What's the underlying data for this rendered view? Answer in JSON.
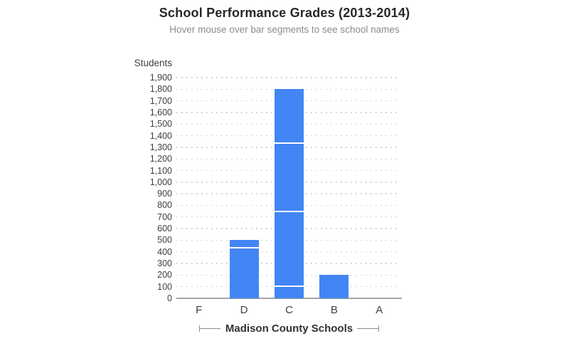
{
  "chart_data": {
    "type": "bar",
    "stacked": true,
    "title": "School Performance Grades (2013-2014)",
    "subtitle": "Hover mouse over bar segments to see school names",
    "ylabel": "Students",
    "xlabel": "Madison County Schools",
    "categories": [
      "F",
      "D",
      "C",
      "B",
      "A"
    ],
    "stacks": [
      {
        "category": "F",
        "segments": [],
        "total": 0
      },
      {
        "category": "D",
        "segments": [
          430,
          70
        ],
        "total": 500
      },
      {
        "category": "C",
        "segments": [
          100,
          640,
          590,
          470
        ],
        "total": 1800
      },
      {
        "category": "B",
        "segments": [
          200
        ],
        "total": 200
      },
      {
        "category": "A",
        "segments": [],
        "total": 0
      }
    ],
    "ylim": [
      0,
      1900
    ],
    "ytick_step": 100,
    "ytick_values": [
      1900,
      1800,
      1700,
      1600,
      1500,
      1400,
      1300,
      1200,
      1100,
      1000,
      900,
      800,
      700,
      600,
      500,
      400,
      300,
      200,
      100,
      0
    ],
    "ytick_labels": [
      "1,900",
      "1,800",
      "1,700",
      "1,600",
      "1,500",
      "1,400",
      "1,300",
      "1,200",
      "1,100",
      "1,000",
      "900",
      "800",
      "700",
      "600",
      "500",
      "400",
      "300",
      "200",
      "100",
      "0"
    ],
    "grid": "dotted-horizontal",
    "legend": "none"
  },
  "colors": {
    "bar": "#4285F4",
    "grid": "#c7c7c7",
    "axis": "#a6a6a6",
    "title": "#282828",
    "subtitle": "#8b8b8b",
    "tick": "#3f3f3f",
    "bracket": "#8a8a8a"
  }
}
